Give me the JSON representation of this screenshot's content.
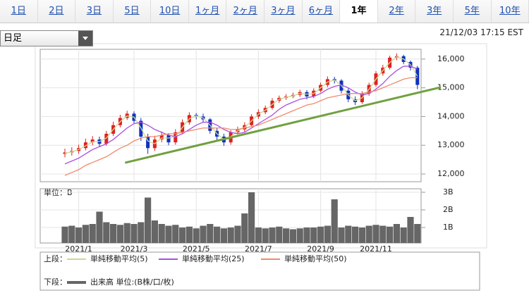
{
  "tabs": [
    "1日",
    "2日",
    "3日",
    "5日",
    "10日",
    "1ヶ月",
    "2ヶ月",
    "3ヶ月",
    "6ヶ月",
    "1年",
    "2年",
    "3年",
    "5年",
    "10年"
  ],
  "selected_tab": "1年",
  "selector": "日足",
  "timestamp": "21/12/03 17:15 EST",
  "chart_data": {
    "type": "candlestick",
    "categories": [
      null,
      null,
      "2021/1",
      null,
      null,
      null,
      null,
      null,
      null,
      null,
      "2021/3",
      null,
      null,
      null,
      null,
      null,
      null,
      null,
      null,
      "2021/5",
      null,
      null,
      null,
      null,
      null,
      null,
      null,
      null,
      "2021/7",
      null,
      null,
      null,
      null,
      null,
      null,
      null,
      null,
      "2021/9",
      null,
      null,
      null,
      null,
      null,
      null,
      null,
      "2021/11",
      null,
      null,
      null,
      null,
      null,
      null
    ],
    "open": [
      12700,
      12750,
      12800,
      12900,
      13100,
      13200,
      13050,
      13400,
      13700,
      13950,
      14100,
      13850,
      13300,
      12900,
      13200,
      13350,
      13100,
      13450,
      13800,
      14050,
      14000,
      13900,
      13500,
      13300,
      13100,
      13450,
      13550,
      13700,
      14000,
      14150,
      14300,
      14550,
      14650,
      14700,
      14750,
      14850,
      14700,
      14900,
      15100,
      15300,
      15250,
      14900,
      14600,
      14500,
      14800,
      15100,
      15500,
      15700,
      16050,
      16100,
      15900,
      15700
    ],
    "high": [
      12880,
      12930,
      13020,
      13230,
      13320,
      13300,
      13500,
      13820,
      14060,
      14200,
      14180,
      13950,
      13400,
      13330,
      13480,
      13420,
      13560,
      13900,
      14150,
      14120,
      14100,
      13950,
      13600,
      13400,
      13520,
      13650,
      13800,
      14080,
      14250,
      14380,
      14640,
      14730,
      14780,
      14830,
      14930,
      14920,
      14980,
      15180,
      15400,
      15380,
      15300,
      14980,
      14700,
      14880,
      15180,
      15580,
      15800,
      16120,
      16200,
      16150,
      15950,
      15760
    ],
    "low": [
      12580,
      12640,
      12700,
      12820,
      13000,
      12960,
      12980,
      13320,
      13620,
      13880,
      13760,
      13150,
      12700,
      12800,
      13100,
      13000,
      13020,
      13380,
      13720,
      13900,
      13800,
      13400,
      13150,
      12980,
      13020,
      13380,
      13470,
      13640,
      13920,
      14080,
      14240,
      14480,
      14580,
      14640,
      14680,
      14600,
      14640,
      14840,
      15020,
      15150,
      14800,
      14500,
      14400,
      14440,
      14720,
      15040,
      15420,
      15640,
      15960,
      15820,
      15600,
      14950
    ],
    "close": [
      12750,
      12800,
      12900,
      13100,
      13200,
      13050,
      13400,
      13700,
      13950,
      14100,
      13850,
      13300,
      12900,
      13200,
      13350,
      13100,
      13450,
      13800,
      14050,
      14000,
      13900,
      13500,
      13300,
      13100,
      13450,
      13550,
      13700,
      14000,
      14150,
      14300,
      14550,
      14650,
      14700,
      14750,
      14850,
      14700,
      14900,
      15100,
      15300,
      15250,
      14900,
      14600,
      14500,
      14800,
      15100,
      15500,
      15700,
      16050,
      16100,
      15900,
      15700,
      15100
    ],
    "up_color": "#e02020",
    "down_color": "#1030c0",
    "series": [
      {
        "name": "単純移動平均(5)",
        "color": "#c8dc90",
        "values": [
          12720,
          12770,
          12850,
          12980,
          13120,
          13130,
          13250,
          13550,
          13820,
          14020,
          13980,
          13600,
          13150,
          13050,
          13250,
          13250,
          13300,
          13620,
          13920,
          14020,
          13950,
          13700,
          13400,
          13200,
          13300,
          13500,
          13620,
          13850,
          14080,
          14220,
          14420,
          14600,
          14670,
          14720,
          14800,
          14780,
          14800,
          15000,
          15200,
          15270,
          15080,
          14750,
          14550,
          14650,
          14950,
          15300,
          15600,
          15880,
          16080,
          16000,
          15800,
          15400
        ]
      },
      {
        "name": "単純移動平均(25)",
        "color": "#a850e0",
        "values": [
          12350,
          12450,
          12550,
          12700,
          12850,
          12950,
          13050,
          13200,
          13400,
          13600,
          13750,
          13800,
          13700,
          13550,
          13450,
          13350,
          13300,
          13400,
          13550,
          13700,
          13800,
          13800,
          13700,
          13550,
          13450,
          13400,
          13450,
          13600,
          13750,
          13900,
          14050,
          14250,
          14400,
          14500,
          14600,
          14650,
          14700,
          14800,
          14950,
          15050,
          15100,
          15000,
          14850,
          14750,
          14800,
          14950,
          15150,
          15400,
          15600,
          15750,
          15750,
          15650
        ]
      },
      {
        "name": "単純移動平均(50)",
        "color": "#f08a6a",
        "values": [
          11950,
          12050,
          12150,
          12300,
          12400,
          12500,
          12600,
          12750,
          12900,
          13000,
          13150,
          13250,
          13300,
          13300,
          13350,
          13400,
          13400,
          13450,
          13500,
          13550,
          13600,
          13600,
          13600,
          13600,
          13550,
          13550,
          13600,
          13650,
          13700,
          13800,
          13900,
          14000,
          14100,
          14200,
          14300,
          14400,
          14450,
          14550,
          14650,
          14700,
          14750,
          14800,
          14800,
          14800,
          14850,
          14900,
          15000,
          15100,
          15200,
          15300,
          15350,
          15350
        ]
      }
    ],
    "ylim": [
      11730,
      16340
    ],
    "yticks": [
      {
        "value": 12000,
        "label": "12,000"
      },
      {
        "value": 13000,
        "label": "13,000"
      },
      {
        "value": 14000,
        "label": "14,000"
      },
      {
        "value": 15000,
        "label": "15,000"
      },
      {
        "value": 16000,
        "label": "16,000"
      }
    ],
    "trendline": {
      "color": "#70a040",
      "x": [
        8.7,
        54.4
      ],
      "y": [
        12390,
        15020
      ]
    },
    "upper_label": "上段：",
    "lower_label": "下段：",
    "volume": {
      "name": "出来高 単位:(B株/口/枚)",
      "unit_label": "単位：B",
      "color": "#666666",
      "values": [
        1.05,
        1.1,
        1.0,
        1.15,
        1.2,
        1.9,
        1.3,
        1.2,
        1.15,
        1.25,
        1.2,
        1.3,
        2.7,
        1.4,
        1.2,
        1.1,
        1.15,
        1.0,
        1.05,
        0.95,
        1.1,
        1.2,
        1.05,
        0.95,
        1.0,
        1.1,
        1.8,
        3.0,
        1.0,
        0.95,
        1.0,
        1.05,
        0.95,
        0.9,
        0.95,
        1.0,
        1.0,
        1.05,
        1.1,
        2.6,
        1.0,
        1.1,
        1.05,
        1.0,
        1.1,
        1.15,
        1.1,
        1.05,
        1.2,
        1.0,
        1.6,
        1.2
      ],
      "ylim": [
        0.12,
        3.2
      ],
      "yticks": [
        {
          "value": 1,
          "label": "1B"
        },
        {
          "value": 2,
          "label": "2B"
        },
        {
          "value": 3,
          "label": "3B"
        }
      ]
    }
  }
}
